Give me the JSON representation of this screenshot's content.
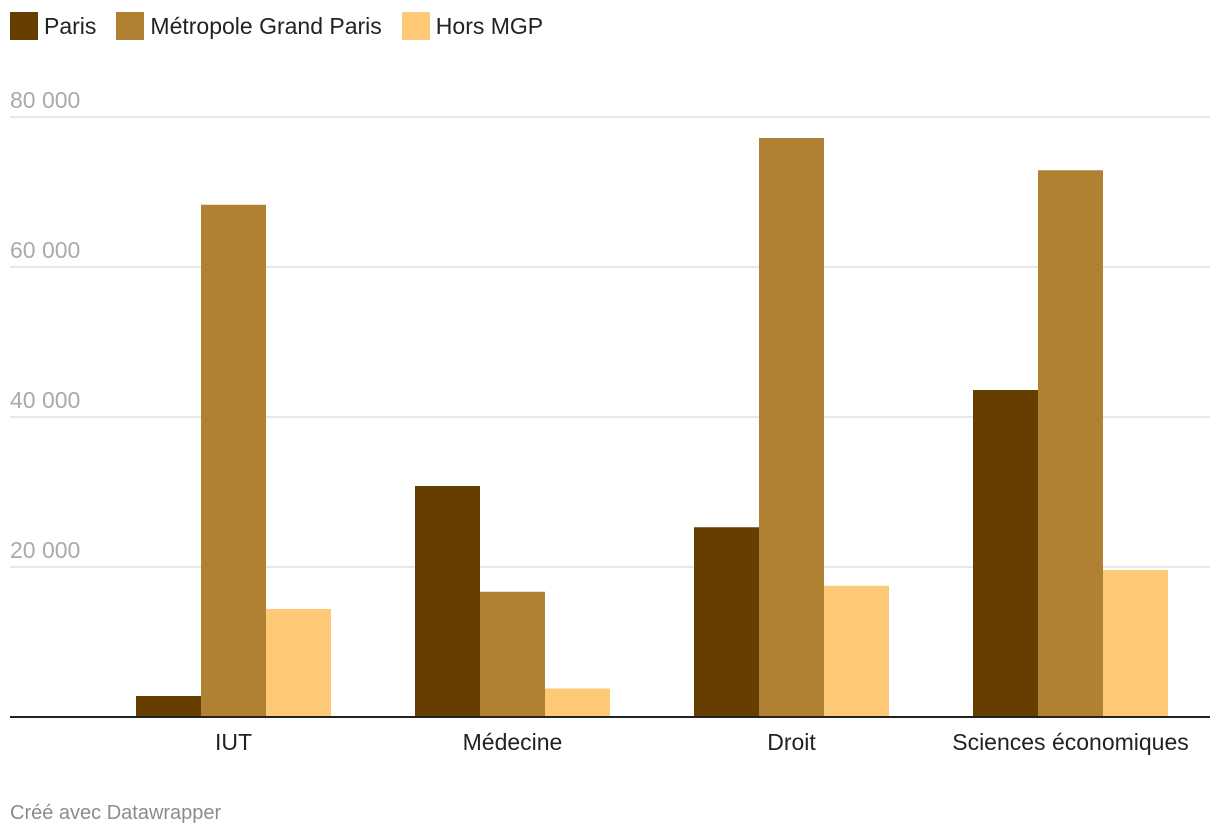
{
  "chart_data": {
    "type": "bar",
    "categories": [
      "IUT",
      "Médecine",
      "Droit",
      "Sciences économiques"
    ],
    "series": [
      {
        "name": "Paris",
        "color": "#663e00",
        "values": [
          2800,
          30800,
          25300,
          43600
        ]
      },
      {
        "name": "Métropole Grand Paris",
        "color": "#b08132",
        "values": [
          68300,
          16700,
          77200,
          72900
        ]
      },
      {
        "name": "Hors MGP",
        "color": "#fec976",
        "values": [
          14400,
          3800,
          17500,
          19600
        ]
      }
    ],
    "yticks": [
      "20 000",
      "40 000",
      "60 000",
      "80 000"
    ],
    "ytick_values": [
      20000,
      40000,
      60000,
      80000
    ],
    "ylim": [
      0,
      80000
    ],
    "grid": true,
    "legend_position": "top-left"
  },
  "footer": {
    "credit": "Créé avec Datawrapper"
  }
}
